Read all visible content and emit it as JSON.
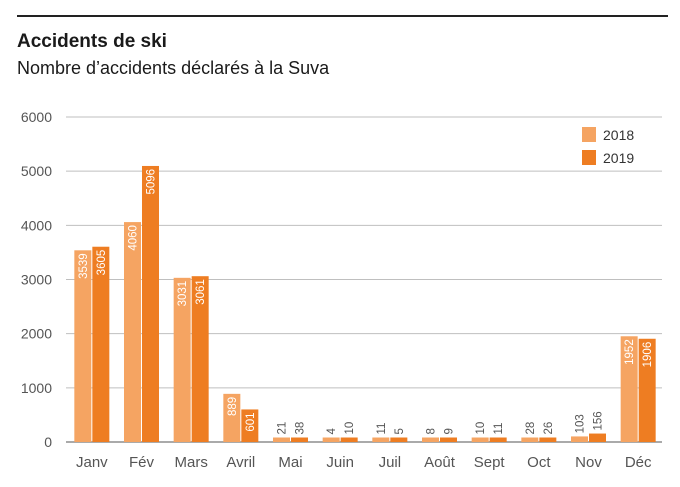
{
  "chart_data": {
    "type": "bar",
    "title": "Accidents de ski",
    "subtitle": "Nombre d’accidents déclarés à la Suva",
    "categories": [
      "Janv",
      "Fév",
      "Mars",
      "Avril",
      "Mai",
      "Juin",
      "Juil",
      "Août",
      "Sept",
      "Oct",
      "Nov",
      "Déc"
    ],
    "series": [
      {
        "name": "2018",
        "color": "#f5a462",
        "values": [
          3539,
          4060,
          3031,
          889,
          21,
          4,
          11,
          8,
          10,
          28,
          103,
          1952
        ]
      },
      {
        "name": "2019",
        "color": "#ee7d22",
        "values": [
          3605,
          5096,
          3061,
          601,
          38,
          10,
          5,
          9,
          11,
          26,
          156,
          1906
        ]
      }
    ],
    "yticks": [
      0,
      1000,
      2000,
      3000,
      4000,
      5000,
      6000
    ],
    "ylim": [
      0,
      6000
    ],
    "xlabel": "",
    "ylabel": "",
    "grid": true,
    "legend": "top-right"
  }
}
